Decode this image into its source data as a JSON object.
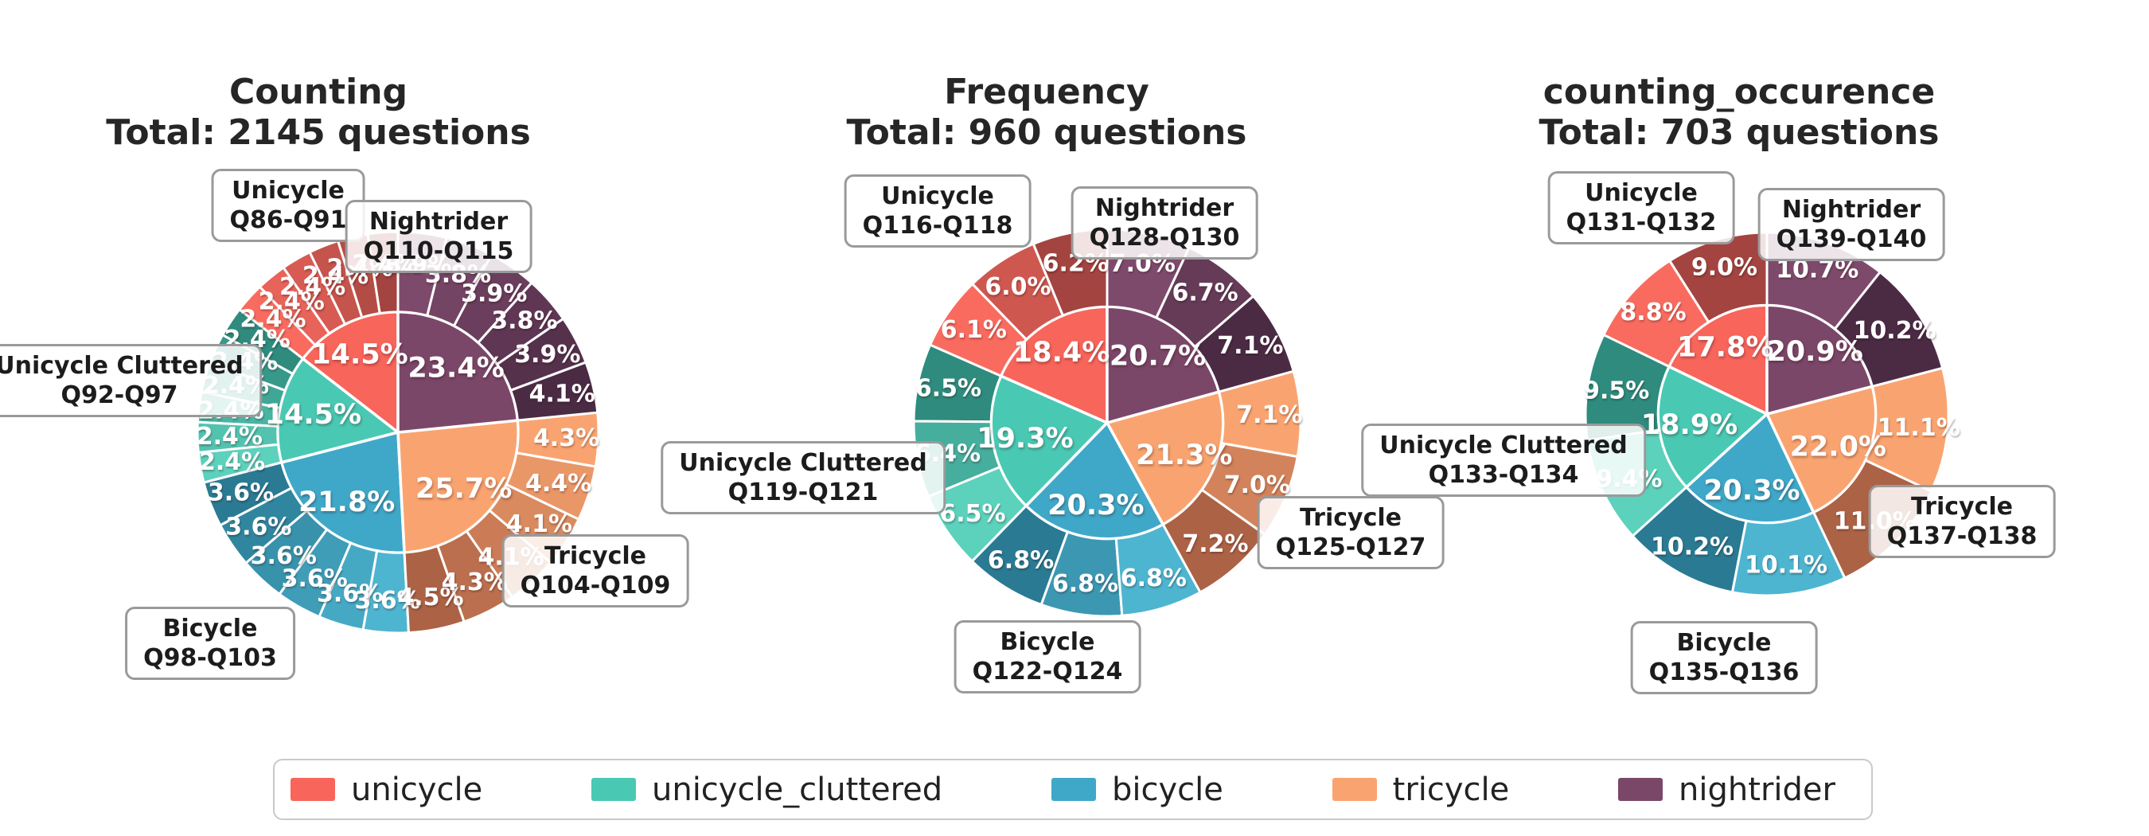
{
  "legend": {
    "items": [
      {
        "label": "unicycle",
        "color": "#F8655B"
      },
      {
        "label": "unicycle_cluttered",
        "color": "#49C9B3"
      },
      {
        "label": "bicycle",
        "color": "#3FA8C8"
      },
      {
        "label": "tricycle",
        "color": "#F9A470"
      },
      {
        "label": "nightrider",
        "color": "#7B4769"
      }
    ]
  },
  "palette": {
    "unicycle": {
      "base": "#F8655B",
      "dark": "#A34440",
      "light": "#F96B5F"
    },
    "unicycle_cluttered": {
      "base": "#49C9B3",
      "dark": "#2E8B7D",
      "light": "#5CD1BC"
    },
    "bicycle": {
      "base": "#3FA8C8",
      "dark": "#2A7A93",
      "light": "#4DB5D0"
    },
    "tricycle": {
      "base": "#F9A470",
      "dark": "#AC6245",
      "light": "#F9A470"
    },
    "nightrider": {
      "base": "#7B4769",
      "dark": "#4B2B44",
      "light": "#7E4A6C"
    }
  },
  "chart_data": [
    {
      "type": "pie",
      "title": "Counting",
      "subtitle": "Total: 2145 questions",
      "total_questions": 2145,
      "start_angle": 90,
      "direction": "counterclockwise",
      "rings": [
        "category",
        "question"
      ],
      "categories": [
        {
          "name": "unicycle",
          "label": "Unicycle",
          "range": "Q86-Q91",
          "inner_pct": 14.5,
          "outer_pcts": [
            2.4,
            2.4,
            2.4,
            2.4,
            2.4,
            2.4
          ]
        },
        {
          "name": "unicycle_cluttered",
          "label": "Unicycle Cluttered",
          "range": "Q92-Q97",
          "inner_pct": 14.5,
          "outer_pcts": [
            2.4,
            2.4,
            2.4,
            2.4,
            2.4,
            2.4
          ]
        },
        {
          "name": "bicycle",
          "label": "Bicycle",
          "range": "Q98-Q103",
          "inner_pct": 21.8,
          "outer_pcts": [
            3.6,
            3.6,
            3.6,
            3.6,
            3.6,
            3.6
          ]
        },
        {
          "name": "tricycle",
          "label": "Tricycle",
          "range": "Q104-Q109",
          "inner_pct": 25.7,
          "outer_pcts": [
            4.5,
            4.3,
            4.1,
            4.1,
            4.4,
            4.3
          ]
        },
        {
          "name": "nightrider",
          "label": "Nightrider",
          "range": "Q110-Q115",
          "inner_pct": 23.4,
          "outer_pcts": [
            4.1,
            3.9,
            3.8,
            3.9,
            3.8,
            3.9
          ]
        }
      ]
    },
    {
      "type": "pie",
      "title": "Frequency",
      "subtitle": "Total: 960 questions",
      "total_questions": 960,
      "start_angle": 90,
      "direction": "counterclockwise",
      "rings": [
        "category",
        "question"
      ],
      "categories": [
        {
          "name": "unicycle",
          "label": "Unicycle",
          "range": "Q116-Q118",
          "inner_pct": 18.4,
          "outer_pcts": [
            6.2,
            6.0,
            6.1
          ]
        },
        {
          "name": "unicycle_cluttered",
          "label": "Unicycle Cluttered",
          "range": "Q119-Q121",
          "inner_pct": 19.3,
          "outer_pcts": [
            6.5,
            6.4,
            6.5
          ]
        },
        {
          "name": "bicycle",
          "label": "Bicycle",
          "range": "Q122-Q124",
          "inner_pct": 20.3,
          "outer_pcts": [
            6.8,
            6.8,
            6.8
          ]
        },
        {
          "name": "tricycle",
          "label": "Tricycle",
          "range": "Q125-Q127",
          "inner_pct": 21.3,
          "outer_pcts": [
            7.2,
            7.0,
            7.1
          ]
        },
        {
          "name": "nightrider",
          "label": "Nightrider",
          "range": "Q128-Q130",
          "inner_pct": 20.7,
          "outer_pcts": [
            7.1,
            6.7,
            7.0
          ]
        }
      ]
    },
    {
      "type": "pie",
      "title": "counting_occurence",
      "subtitle": "Total: 703 questions",
      "total_questions": 703,
      "start_angle": 90,
      "direction": "counterclockwise",
      "rings": [
        "category",
        "question"
      ],
      "categories": [
        {
          "name": "unicycle",
          "label": "Unicycle",
          "range": "Q131-Q132",
          "inner_pct": 17.8,
          "outer_pcts": [
            9.0,
            8.8
          ]
        },
        {
          "name": "unicycle_cluttered",
          "label": "Unicycle Cluttered",
          "range": "Q133-Q134",
          "inner_pct": 18.9,
          "outer_pcts": [
            9.5,
            9.4
          ]
        },
        {
          "name": "bicycle",
          "label": "Bicycle",
          "range": "Q135-Q136",
          "inner_pct": 20.3,
          "outer_pcts": [
            10.2,
            10.1
          ]
        },
        {
          "name": "tricycle",
          "label": "Tricycle",
          "range": "Q137-Q138",
          "inner_pct": 22.0,
          "outer_pcts": [
            11.0,
            11.1
          ]
        },
        {
          "name": "nightrider",
          "label": "Nightrider",
          "range": "Q139-Q140",
          "inner_pct": 20.9,
          "outer_pcts": [
            10.2,
            10.7
          ]
        }
      ]
    }
  ]
}
